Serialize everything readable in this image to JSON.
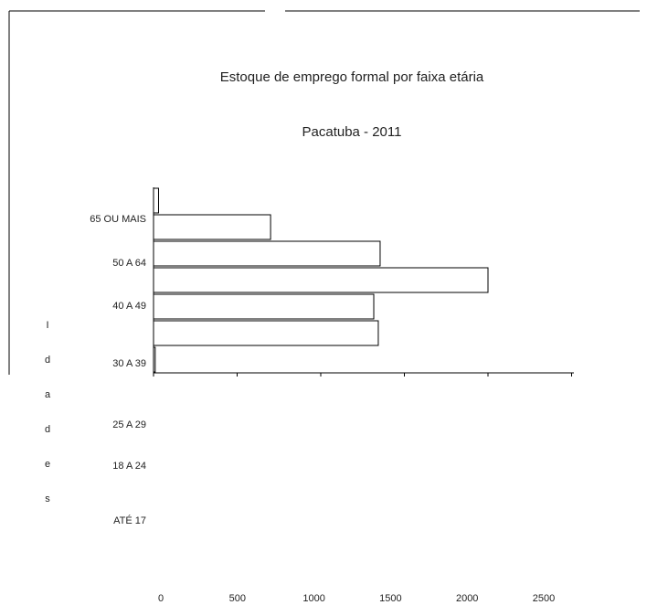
{
  "chart_data": {
    "type": "bar",
    "orientation": "horizontal",
    "title": "Estoque de emprego formal por faixa etária",
    "subtitle": "Pacatuba - 2011",
    "y_label": "Idades",
    "categories": [
      "65 OU MAIS",
      "50 A 64",
      "40 A 49",
      "30 A 39",
      "25 A 29",
      "18 A 24",
      "ATÉ 17"
    ],
    "values": [
      30,
      700,
      1355,
      2000,
      1317,
      1344,
      10
    ],
    "color": "#ffffff",
    "xlim": [
      0,
      2500
    ],
    "xticks": [
      0,
      500,
      1000,
      1500,
      2000,
      2500
    ],
    "grid": false
  }
}
